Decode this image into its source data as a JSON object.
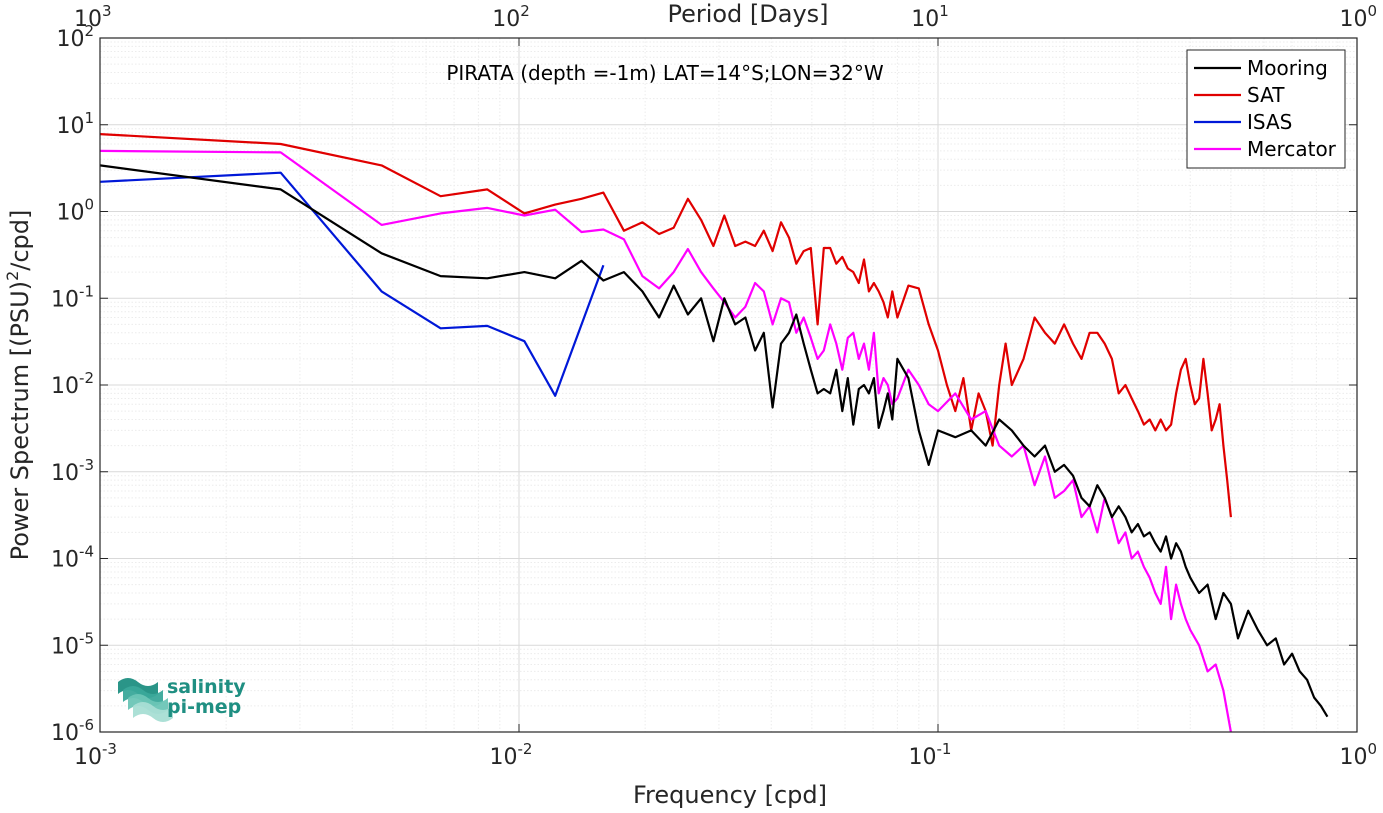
{
  "chart_data": {
    "type": "line",
    "title": "PIRATA (depth =-1m) LAT=14°S;LON=32°W",
    "xlabel": "Frequency [cpd]",
    "ylabel": "Power Spectrum [(PSU)^2/cpd]",
    "x2label": "Period [Days]",
    "xscale": "log",
    "yscale": "log",
    "xlim": [
      0.001,
      1
    ],
    "ylim": [
      1e-06,
      100
    ],
    "grid": true,
    "legend_position": "top-right",
    "x_ticks": [
      0.001,
      0.01,
      0.1,
      1
    ],
    "y_ticks": [
      1e-06,
      1e-05,
      0.0001,
      0.001,
      0.01,
      0.1,
      1,
      10,
      100
    ],
    "x_tick_labels": [
      {
        "base": "10",
        "exp": "-3"
      },
      {
        "base": "10",
        "exp": "-2"
      },
      {
        "base": "10",
        "exp": "-1"
      },
      {
        "base": "10",
        "exp": "0"
      }
    ],
    "x2_tick_labels": [
      {
        "base": "10",
        "exp": "3"
      },
      {
        "base": "10",
        "exp": "2"
      },
      {
        "base": "10",
        "exp": "1"
      },
      {
        "base": "10",
        "exp": "0"
      }
    ],
    "y_tick_labels": [
      {
        "base": "10",
        "exp": "-6"
      },
      {
        "base": "10",
        "exp": "-5"
      },
      {
        "base": "10",
        "exp": "-4"
      },
      {
        "base": "10",
        "exp": "-3"
      },
      {
        "base": "10",
        "exp": "-2"
      },
      {
        "base": "10",
        "exp": "-1"
      },
      {
        "base": "10",
        "exp": "0"
      },
      {
        "base": "10",
        "exp": "1"
      },
      {
        "base": "10",
        "exp": "2"
      }
    ],
    "series": [
      {
        "name": "Mooring",
        "color": "#000000",
        "x": [
          0.001,
          0.0027,
          0.0047,
          0.0065,
          0.0084,
          0.0103,
          0.0122,
          0.0141,
          0.0159,
          0.0178,
          0.0197,
          0.0216,
          0.0234,
          0.0253,
          0.0272,
          0.0291,
          0.0309,
          0.0328,
          0.0347,
          0.0366,
          0.0384,
          0.0403,
          0.0422,
          0.0441,
          0.0459,
          0.0478,
          0.0497,
          0.0516,
          0.0534,
          0.0553,
          0.0572,
          0.0591,
          0.0609,
          0.0628,
          0.0647,
          0.0666,
          0.0684,
          0.0703,
          0.0722,
          0.0741,
          0.0759,
          0.0778,
          0.08,
          0.085,
          0.09,
          0.095,
          0.1,
          0.11,
          0.12,
          0.13,
          0.14,
          0.15,
          0.16,
          0.17,
          0.18,
          0.19,
          0.2,
          0.21,
          0.22,
          0.23,
          0.24,
          0.25,
          0.26,
          0.27,
          0.28,
          0.29,
          0.3,
          0.31,
          0.32,
          0.33,
          0.34,
          0.35,
          0.36,
          0.37,
          0.38,
          0.39,
          0.4,
          0.42,
          0.44,
          0.46,
          0.48,
          0.5,
          0.52,
          0.55,
          0.58,
          0.61,
          0.64,
          0.67,
          0.7,
          0.73,
          0.76,
          0.79,
          0.82,
          0.85
        ],
        "y": [
          3.4,
          1.8,
          0.33,
          0.18,
          0.17,
          0.2,
          0.17,
          0.27,
          0.16,
          0.2,
          0.12,
          0.06,
          0.14,
          0.065,
          0.1,
          0.032,
          0.1,
          0.05,
          0.06,
          0.025,
          0.04,
          0.0055,
          0.03,
          0.04,
          0.065,
          0.03,
          0.015,
          0.008,
          0.009,
          0.008,
          0.015,
          0.005,
          0.012,
          0.0035,
          0.009,
          0.01,
          0.008,
          0.012,
          0.0032,
          0.005,
          0.008,
          0.004,
          0.02,
          0.012,
          0.003,
          0.0012,
          0.003,
          0.0025,
          0.003,
          0.002,
          0.004,
          0.003,
          0.002,
          0.0015,
          0.002,
          0.001,
          0.0012,
          0.0009,
          0.0005,
          0.0004,
          0.0007,
          0.0005,
          0.0003,
          0.0004,
          0.0003,
          0.0002,
          0.00025,
          0.00018,
          0.0002,
          0.00015,
          0.00012,
          0.00018,
          0.0001,
          0.00015,
          0.00012,
          8e-05,
          6e-05,
          4e-05,
          5e-05,
          2e-05,
          4e-05,
          3e-05,
          1.2e-05,
          2.5e-05,
          1.5e-05,
          1e-05,
          1.2e-05,
          6e-06,
          8e-06,
          5e-06,
          4e-06,
          2.5e-06,
          2e-06,
          1.5e-06
        ]
      },
      {
        "name": "SAT",
        "color": "#e00000",
        "x": [
          0.001,
          0.0027,
          0.0047,
          0.0065,
          0.0084,
          0.0103,
          0.0122,
          0.0141,
          0.0159,
          0.0178,
          0.0197,
          0.0216,
          0.0234,
          0.0253,
          0.0272,
          0.0291,
          0.0309,
          0.0328,
          0.0347,
          0.0366,
          0.0384,
          0.0403,
          0.0422,
          0.0441,
          0.0459,
          0.0478,
          0.0497,
          0.0516,
          0.0534,
          0.0553,
          0.0572,
          0.0591,
          0.0609,
          0.0628,
          0.0647,
          0.0666,
          0.0684,
          0.0703,
          0.0722,
          0.0741,
          0.0759,
          0.0778,
          0.08,
          0.085,
          0.09,
          0.095,
          0.1,
          0.105,
          0.11,
          0.115,
          0.12,
          0.125,
          0.13,
          0.135,
          0.14,
          0.145,
          0.15,
          0.16,
          0.17,
          0.18,
          0.19,
          0.2,
          0.21,
          0.22,
          0.23,
          0.24,
          0.25,
          0.26,
          0.27,
          0.28,
          0.29,
          0.3,
          0.31,
          0.32,
          0.33,
          0.34,
          0.35,
          0.36,
          0.37,
          0.38,
          0.39,
          0.4,
          0.41,
          0.42,
          0.43,
          0.44,
          0.45,
          0.46,
          0.47,
          0.48,
          0.49,
          0.5
        ],
        "y": [
          7.8,
          6.0,
          3.4,
          1.5,
          1.8,
          0.95,
          1.2,
          1.4,
          1.65,
          0.6,
          0.75,
          0.55,
          0.65,
          1.4,
          0.8,
          0.4,
          0.9,
          0.4,
          0.45,
          0.4,
          0.6,
          0.35,
          0.75,
          0.5,
          0.25,
          0.35,
          0.38,
          0.05,
          0.38,
          0.38,
          0.25,
          0.3,
          0.22,
          0.2,
          0.15,
          0.28,
          0.12,
          0.15,
          0.12,
          0.09,
          0.06,
          0.12,
          0.06,
          0.14,
          0.13,
          0.05,
          0.025,
          0.01,
          0.005,
          0.012,
          0.003,
          0.008,
          0.005,
          0.002,
          0.01,
          0.03,
          0.01,
          0.02,
          0.06,
          0.04,
          0.03,
          0.05,
          0.03,
          0.02,
          0.04,
          0.04,
          0.03,
          0.02,
          0.008,
          0.01,
          0.007,
          0.005,
          0.0035,
          0.004,
          0.003,
          0.004,
          0.003,
          0.0035,
          0.008,
          0.015,
          0.02,
          0.01,
          0.006,
          0.007,
          0.02,
          0.008,
          0.003,
          0.004,
          0.006,
          0.002,
          0.0008,
          0.0003
        ]
      },
      {
        "name": "ISAS",
        "color": "#0018d8",
        "x": [
          0.001,
          0.0027,
          0.0047,
          0.0065,
          0.0084,
          0.0103,
          0.0122,
          0.0159
        ],
        "y": [
          2.2,
          2.8,
          0.12,
          0.045,
          0.048,
          0.032,
          0.0075,
          0.24
        ]
      },
      {
        "name": "Mercator",
        "color": "#ff00ff",
        "x": [
          0.001,
          0.0027,
          0.0047,
          0.0065,
          0.0084,
          0.0103,
          0.0122,
          0.0141,
          0.0159,
          0.0178,
          0.0197,
          0.0216,
          0.0234,
          0.0253,
          0.0272,
          0.0291,
          0.0309,
          0.0328,
          0.0347,
          0.0366,
          0.0384,
          0.0403,
          0.0422,
          0.0441,
          0.0459,
          0.0478,
          0.0497,
          0.0516,
          0.0534,
          0.0553,
          0.0572,
          0.0591,
          0.0609,
          0.0628,
          0.0647,
          0.0666,
          0.0684,
          0.0703,
          0.0722,
          0.0741,
          0.0759,
          0.0778,
          0.08,
          0.085,
          0.09,
          0.095,
          0.1,
          0.11,
          0.12,
          0.13,
          0.14,
          0.15,
          0.16,
          0.17,
          0.18,
          0.19,
          0.2,
          0.21,
          0.22,
          0.23,
          0.24,
          0.25,
          0.26,
          0.27,
          0.28,
          0.29,
          0.3,
          0.31,
          0.32,
          0.33,
          0.34,
          0.35,
          0.36,
          0.37,
          0.38,
          0.39,
          0.4,
          0.42,
          0.44,
          0.46,
          0.48,
          0.5
        ],
        "y": [
          5.0,
          4.8,
          0.7,
          0.95,
          1.1,
          0.9,
          1.05,
          0.58,
          0.62,
          0.48,
          0.18,
          0.13,
          0.2,
          0.37,
          0.2,
          0.13,
          0.09,
          0.06,
          0.08,
          0.15,
          0.12,
          0.05,
          0.1,
          0.09,
          0.04,
          0.06,
          0.035,
          0.02,
          0.025,
          0.05,
          0.03,
          0.015,
          0.035,
          0.04,
          0.02,
          0.03,
          0.015,
          0.04,
          0.008,
          0.012,
          0.01,
          0.006,
          0.007,
          0.015,
          0.01,
          0.006,
          0.005,
          0.008,
          0.004,
          0.005,
          0.002,
          0.0015,
          0.002,
          0.0007,
          0.0015,
          0.0005,
          0.0006,
          0.0008,
          0.0003,
          0.0004,
          0.0002,
          0.0005,
          0.0003,
          0.00015,
          0.0002,
          0.0001,
          0.00012,
          8e-05,
          6e-05,
          4e-05,
          3e-05,
          8e-05,
          2e-05,
          5e-05,
          3e-05,
          2e-05,
          1.5e-05,
          1e-05,
          5e-06,
          6e-06,
          3e-06,
          1e-06
        ]
      }
    ]
  },
  "logo": {
    "line1": "salinity",
    "line2": "pi-mep",
    "colors": [
      "#1f8f82",
      "#3aa89a",
      "#6cc5b6",
      "#a8ded4"
    ]
  }
}
